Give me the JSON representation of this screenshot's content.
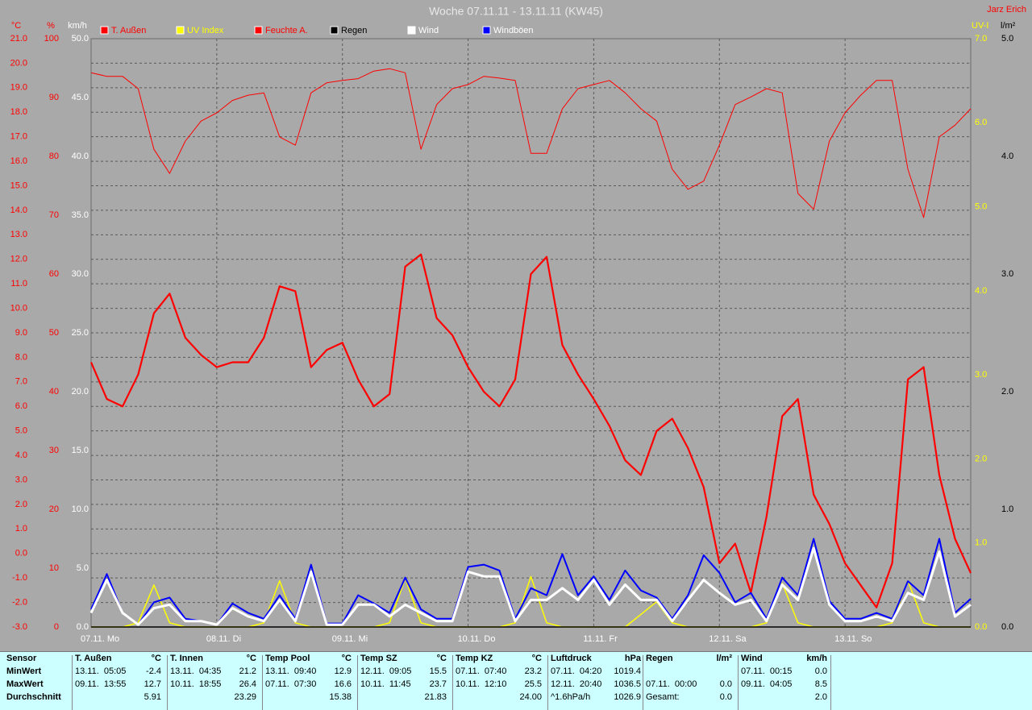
{
  "chart_data": {
    "type": "line",
    "title": "Woche 07.11.11 - 13.11.11 (KW45)",
    "author": "Jarz Erich",
    "categories": [
      "07.11. Mo",
      null,
      null,
      null,
      null,
      null,
      null,
      null,
      "08.11. Di",
      null,
      null,
      null,
      null,
      null,
      null,
      null,
      "09.11. Mi",
      null,
      null,
      null,
      null,
      null,
      null,
      null,
      "10.11. Do",
      null,
      null,
      null,
      null,
      null,
      null,
      null,
      "11.11. Fr",
      null,
      null,
      null,
      null,
      null,
      null,
      null,
      "12.11. Sa",
      null,
      null,
      null,
      null,
      null,
      null,
      null,
      "13.11. So",
      null,
      null,
      null,
      null,
      null,
      null,
      null,
      null
    ],
    "ylabel": "°C",
    "ylim": [
      -3,
      21
    ],
    "yticks": [
      {
        "value": -3,
        "label": "-3.0"
      },
      {
        "value": -2,
        "label": "-2.0"
      },
      {
        "value": -1,
        "label": "-1.0"
      },
      {
        "value": 0,
        "label": "0.0"
      },
      {
        "value": 1,
        "label": "1.0"
      },
      {
        "value": 2,
        "label": "2.0"
      },
      {
        "value": 3,
        "label": "3.0"
      },
      {
        "value": 4,
        "label": "4.0"
      },
      {
        "value": 5,
        "label": "5.0"
      },
      {
        "value": 6,
        "label": "6.0"
      },
      {
        "value": 7,
        "label": "7.0"
      },
      {
        "value": 8,
        "label": "8.0"
      },
      {
        "value": 9,
        "label": "9.0"
      },
      {
        "value": 10,
        "label": "10.0"
      },
      {
        "value": 11,
        "label": "11.0"
      },
      {
        "value": 12,
        "label": "12.0"
      },
      {
        "value": 13,
        "label": "13.0"
      },
      {
        "value": 14,
        "label": "14.0"
      },
      {
        "value": 15,
        "label": "15.0"
      },
      {
        "value": 16,
        "label": "16.0"
      },
      {
        "value": 17,
        "label": "17.0"
      },
      {
        "value": 18,
        "label": "18.0"
      },
      {
        "value": 19,
        "label": "19.0"
      },
      {
        "value": 20,
        "label": "20.0"
      },
      {
        "value": 21,
        "label": "21.0"
      }
    ],
    "y2label": "%",
    "y2lim": [
      0,
      100
    ],
    "y2ticks": [
      0,
      10,
      20,
      30,
      40,
      50,
      60,
      70,
      80,
      90,
      100
    ],
    "y3label": "km/h",
    "y3lim": [
      0,
      50
    ],
    "y3ticks": [
      {
        "value": 0,
        "label": "0.0"
      },
      {
        "value": 5,
        "label": "5.0"
      },
      {
        "value": 10,
        "label": "10.0"
      },
      {
        "value": 15,
        "label": "15.0"
      },
      {
        "value": 20,
        "label": "20.0"
      },
      {
        "value": 25,
        "label": "25.0"
      },
      {
        "value": 30,
        "label": "30.0"
      },
      {
        "value": 35,
        "label": "35.0"
      },
      {
        "value": 40,
        "label": "40.0"
      },
      {
        "value": 45,
        "label": "45.0"
      },
      {
        "value": 50,
        "label": "50.0"
      }
    ],
    "y4label": "UV-I",
    "y4lim": [
      0,
      7
    ],
    "y4ticks": [
      {
        "value": 0,
        "label": "0.0"
      },
      {
        "value": 1,
        "label": "1.0"
      },
      {
        "value": 2,
        "label": "2.0"
      },
      {
        "value": 3,
        "label": "3.0"
      },
      {
        "value": 4,
        "label": "4.0"
      },
      {
        "value": 5,
        "label": "5.0"
      },
      {
        "value": 6,
        "label": "6.0"
      },
      {
        "value": 7,
        "label": "7.0"
      }
    ],
    "y5label": "l/m²",
    "y5lim": [
      0,
      5
    ],
    "y5ticks": [
      {
        "value": 0,
        "label": "0.0"
      },
      {
        "value": 1,
        "label": "1.0"
      },
      {
        "value": 2,
        "label": "2.0"
      },
      {
        "value": 3,
        "label": "3.0"
      },
      {
        "value": 4,
        "label": "4.0"
      },
      {
        "value": 5,
        "label": "5.0"
      }
    ],
    "grid": true,
    "series": [
      {
        "name": "T. Außen",
        "color": "#ff0000",
        "axis": "y",
        "values": [
          7.8,
          6.3,
          6.0,
          7.3,
          9.8,
          10.6,
          8.8,
          8.1,
          7.6,
          7.8,
          7.8,
          8.8,
          10.9,
          10.7,
          7.6,
          8.3,
          8.6,
          7.1,
          6.0,
          6.5,
          11.7,
          12.2,
          9.6,
          8.9,
          7.6,
          6.6,
          6.0,
          7.1,
          11.4,
          12.1,
          8.5,
          7.3,
          6.3,
          5.2,
          3.8,
          3.2,
          5.0,
          5.5,
          4.3,
          2.7,
          -0.4,
          0.4,
          -1.6,
          1.5,
          5.6,
          6.3,
          2.4,
          1.2,
          -0.4,
          -1.3,
          -2.2,
          -0.4,
          7.1,
          7.6,
          3.2,
          0.6,
          -0.8
        ]
      },
      {
        "name": "UV Index",
        "color": "#ffff00",
        "axis": "y4",
        "values": [
          0,
          0,
          0,
          0.05,
          0.5,
          0.05,
          0,
          0,
          0,
          0,
          0,
          0.05,
          0.55,
          0.05,
          0,
          0,
          0,
          0,
          0,
          0.05,
          0.58,
          0.05,
          0,
          0,
          0,
          0,
          0,
          0.05,
          0.6,
          0.05,
          0,
          0,
          0,
          0,
          0,
          0.15,
          0.3,
          0.05,
          0,
          0,
          0,
          0,
          0,
          0.05,
          0.52,
          0.05,
          0,
          0,
          0,
          0,
          0,
          0.05,
          0.55,
          0.05,
          0,
          0,
          0
        ]
      },
      {
        "name": "Feuchte A.",
        "color": "#ff0000",
        "axis": "y2",
        "values": [
          94.2,
          93.6,
          93.6,
          91.5,
          81.2,
          77.1,
          82.6,
          86.0,
          87.4,
          89.5,
          90.4,
          90.8,
          83.3,
          81.9,
          90.8,
          92.5,
          92.9,
          93.2,
          94.5,
          94.9,
          94.2,
          81.2,
          88.8,
          91.5,
          92.2,
          93.6,
          93.3,
          92.9,
          80.5,
          80.5,
          88.1,
          91.5,
          92.2,
          92.9,
          90.8,
          88.1,
          86.0,
          77.8,
          74.4,
          75.8,
          81.9,
          88.8,
          90.1,
          91.5,
          90.8,
          73.7,
          71.0,
          82.6,
          87.4,
          90.4,
          92.9,
          92.9,
          77.8,
          69.6,
          83.3,
          85.3,
          88.1
        ]
      },
      {
        "name": "Regen",
        "color": "#000000",
        "axis": "y5",
        "values": [
          0,
          0,
          0,
          0,
          0,
          0,
          0,
          0,
          0,
          0,
          0,
          0,
          0,
          0,
          0,
          0,
          0,
          0,
          0,
          0,
          0,
          0,
          0,
          0,
          0,
          0,
          0,
          0,
          0,
          0,
          0,
          0,
          0,
          0,
          0,
          0,
          0,
          0,
          0,
          0,
          0,
          0,
          0,
          0,
          0,
          0,
          0,
          0,
          0,
          0,
          0,
          0,
          0,
          0,
          0,
          0,
          0
        ]
      },
      {
        "name": "Wind",
        "color": "#ffffff",
        "axis": "y3",
        "values": [
          1.2,
          4.0,
          1.2,
          0.2,
          1.6,
          1.9,
          0.5,
          0.5,
          0.2,
          1.6,
          0.9,
          0.5,
          2.3,
          0.5,
          4.7,
          0.2,
          0.2,
          1.9,
          1.9,
          0.9,
          1.9,
          1.2,
          0.5,
          0.5,
          4.7,
          4.3,
          4.3,
          0.5,
          2.3,
          2.3,
          3.3,
          2.3,
          4.0,
          1.9,
          3.6,
          2.3,
          2.3,
          0.5,
          2.3,
          4.0,
          2.9,
          1.9,
          2.3,
          0.5,
          3.6,
          2.3,
          6.7,
          1.9,
          0.5,
          0.5,
          0.9,
          0.5,
          2.9,
          2.3,
          6.4,
          0.9,
          1.9
        ]
      },
      {
        "name": "Windböen",
        "color": "#0000ff",
        "axis": "y3",
        "values": [
          1.5,
          4.5,
          1.2,
          0.2,
          2.1,
          2.5,
          0.7,
          0.5,
          0.2,
          2.0,
          1.2,
          0.7,
          2.7,
          0.7,
          5.3,
          0.3,
          0.3,
          2.7,
          2.0,
          1.2,
          4.2,
          1.5,
          0.7,
          0.7,
          5.1,
          5.3,
          4.8,
          0.7,
          3.3,
          2.7,
          6.2,
          2.7,
          4.3,
          2.3,
          4.8,
          3.1,
          2.5,
          0.7,
          2.7,
          6.1,
          4.6,
          2.1,
          2.9,
          0.7,
          4.2,
          2.7,
          7.5,
          2.2,
          0.7,
          0.7,
          1.2,
          0.7,
          3.9,
          2.7,
          7.5,
          1.2,
          2.4
        ]
      }
    ]
  },
  "table": {
    "sensor_header": "Sensor",
    "row_labels": [
      "MinWert",
      "MaxWert",
      "Durchschnitt"
    ],
    "groups": [
      {
        "name": "T. Außen",
        "unit": "°C",
        "rows": [
          [
            "13.11.  05:05",
            "-2.4"
          ],
          [
            "09.11.  13:55",
            "12.7"
          ],
          [
            null,
            "5.91"
          ]
        ]
      },
      {
        "name": "T. Innen",
        "unit": "°C",
        "rows": [
          [
            "13.11.  04:35",
            "21.2"
          ],
          [
            "10.11.  18:55",
            "26.4"
          ],
          [
            null,
            "23.29"
          ]
        ]
      },
      {
        "name": "Temp Pool",
        "unit": "°C",
        "rows": [
          [
            "13.11.  09:40",
            "12.9"
          ],
          [
            "07.11.  07:30",
            "16.6"
          ],
          [
            null,
            "15.38"
          ]
        ]
      },
      {
        "name": "Temp SZ",
        "unit": "°C",
        "rows": [
          [
            "12.11.  09:05",
            "15.5"
          ],
          [
            "10.11.  11:45",
            "23.7"
          ],
          [
            null,
            "21.83"
          ]
        ]
      },
      {
        "name": "Temp KZ",
        "unit": "°C",
        "rows": [
          [
            "07.11.  07:40",
            "23.2"
          ],
          [
            "10.11.  12:10",
            "25.5"
          ],
          [
            null,
            "24.00"
          ]
        ]
      },
      {
        "name": "Luftdruck",
        "unit": "hPa",
        "rows": [
          [
            "07.11.  04:20",
            "1019.4"
          ],
          [
            "12.11.  20:40",
            "1036.5"
          ],
          [
            "^1.6hPa/h",
            "1026.9"
          ]
        ]
      },
      {
        "name": "Regen",
        "unit": "l/m²",
        "rows": [
          [
            null,
            null
          ],
          [
            "07.11.  00:00",
            "0.0"
          ],
          [
            "Gesamt:",
            "0.0"
          ]
        ]
      },
      {
        "name": "Wind",
        "unit": "km/h",
        "rows": [
          [
            "07.11.  00:15",
            "0.0"
          ],
          [
            "09.11.  04:05",
            "8.5"
          ],
          [
            null,
            "2.0"
          ]
        ]
      }
    ]
  }
}
